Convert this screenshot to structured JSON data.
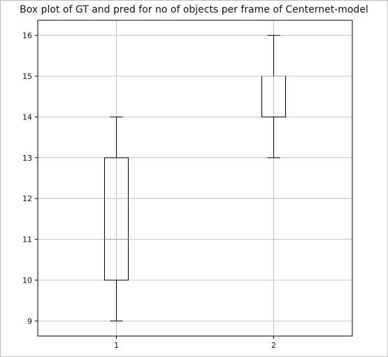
{
  "chart_data": {
    "type": "box",
    "title": "Box plot of GT and pred for no of objects per frame of Centernet-model",
    "xlabel": "",
    "ylabel": "",
    "categories": [
      "1",
      "2"
    ],
    "boxes": [
      {
        "category": "1",
        "whisker_low": 9,
        "q1": 10,
        "median": 11,
        "q3": 13,
        "whisker_high": 14
      },
      {
        "category": "2",
        "whisker_low": 13,
        "q1": 14,
        "median": 15,
        "q3": 15,
        "whisker_high": 16
      }
    ],
    "yticks": [
      9,
      10,
      11,
      12,
      13,
      14,
      15,
      16
    ],
    "ylim": [
      8.63,
      16.37
    ],
    "xlim": [
      0.5,
      2.5
    ],
    "grid": true,
    "colors": {
      "box": "#000000",
      "median": "#a0a0a0",
      "grid": "#b0b0b0"
    }
  }
}
